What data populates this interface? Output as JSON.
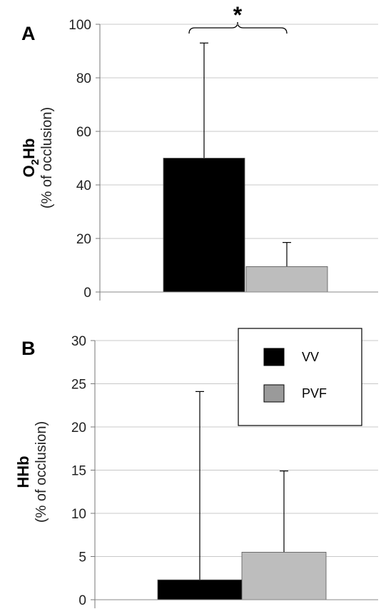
{
  "chart_data": [
    {
      "panel": "A",
      "type": "bar",
      "ylabel_main": "O",
      "ylabel_sub_script": "2",
      "ylabel_main_rest": "Hb",
      "ylabel_unit": "(% of occlusion)",
      "ylim": [
        0,
        100
      ],
      "yticks": [
        "0",
        "20",
        "40",
        "60",
        "80",
        "100"
      ],
      "grid": true,
      "significance": "*",
      "series": [
        {
          "name": "VV",
          "value": 50,
          "error": 43,
          "color": "#000000"
        },
        {
          "name": "PVF",
          "value": 9.5,
          "error": 9,
          "color": "#bdbdbd"
        }
      ]
    },
    {
      "panel": "B",
      "type": "bar",
      "ylabel_main": "HHb",
      "ylabel_unit": "(% of occlusion)",
      "ylim": [
        0,
        30
      ],
      "yticks": [
        "0",
        "5",
        "10",
        "15",
        "20",
        "25",
        "30"
      ],
      "grid": true,
      "series": [
        {
          "name": "VV",
          "value": 2.3,
          "error": 21.8,
          "color": "#000000"
        },
        {
          "name": "PVF",
          "value": 5.5,
          "error": 9.4,
          "color": "#bdbdbd"
        }
      ],
      "legend": {
        "position": "top-right",
        "items": [
          {
            "label": "VV",
            "color": "#000000"
          },
          {
            "label": "PVF",
            "color": "#9a9a9a"
          }
        ]
      }
    }
  ]
}
